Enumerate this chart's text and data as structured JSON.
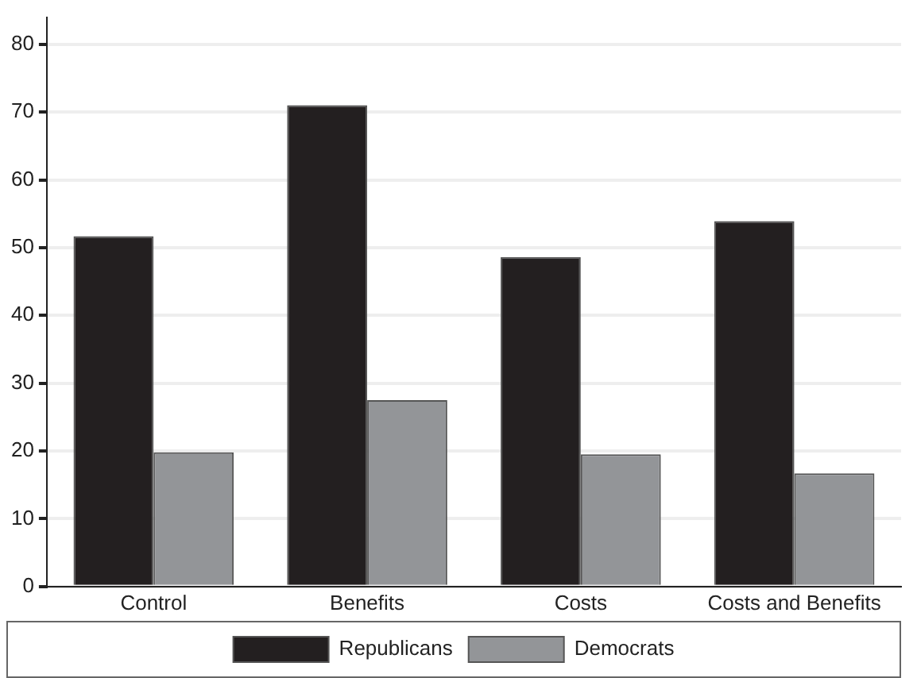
{
  "chart_data": {
    "type": "bar",
    "categories": [
      "Control",
      "Benefits",
      "Costs",
      "Costs and Benefits"
    ],
    "series": [
      {
        "name": "Republicans",
        "color": "#231f20",
        "values": [
          51.7,
          71.0,
          48.6,
          53.9
        ]
      },
      {
        "name": "Democrats",
        "color": "#939598",
        "values": [
          19.8,
          27.5,
          19.5,
          16.7
        ]
      }
    ],
    "ylim": [
      0,
      84
    ],
    "yticks": [
      0,
      10,
      20,
      30,
      40,
      50,
      60,
      70,
      80
    ],
    "grid": "y",
    "legend": "bottom"
  }
}
